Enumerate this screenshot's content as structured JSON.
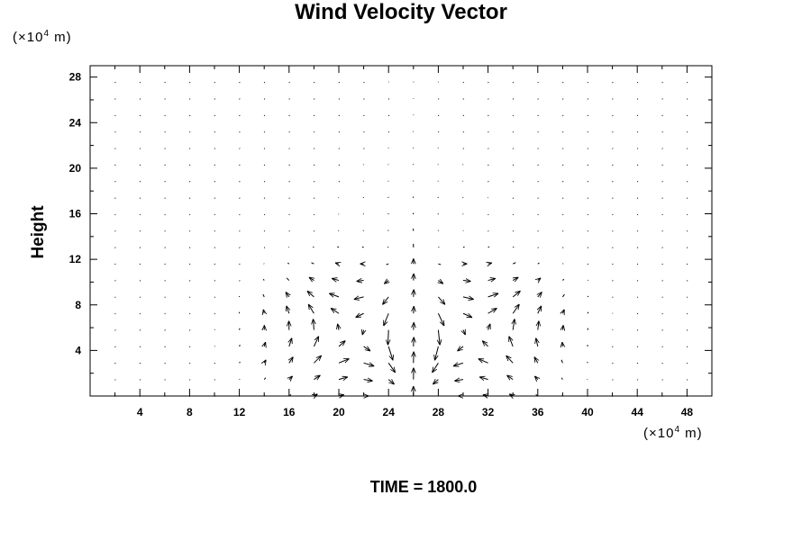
{
  "chart_data": {
    "type": "vector",
    "title": "Wind Velocity Vector",
    "ylabel": "Height",
    "y_unit": {
      "prefix": "(×10",
      "exp": "4",
      "suffix": " m)"
    },
    "x_unit": {
      "prefix": "(×10",
      "exp": "4",
      "suffix": " m)"
    },
    "xlim": [
      0,
      50
    ],
    "ylim": [
      0,
      29
    ],
    "x_ticks": [
      4,
      8,
      12,
      16,
      20,
      24,
      28,
      32,
      36,
      40,
      44,
      48
    ],
    "y_ticks": [
      4,
      8,
      12,
      16,
      20,
      24,
      28
    ],
    "x_minor_step": 2,
    "y_minor_step": 2,
    "grid": false,
    "field": {
      "description_center_x": 26,
      "x_spacing": 2,
      "y_spacing": 1.45,
      "x_start": 2,
      "y_start": 0
    },
    "annotation": "TIME = 1800.0"
  },
  "colors": {
    "axis": "#000000",
    "vectors": "#000000",
    "background": "#ffffff"
  }
}
